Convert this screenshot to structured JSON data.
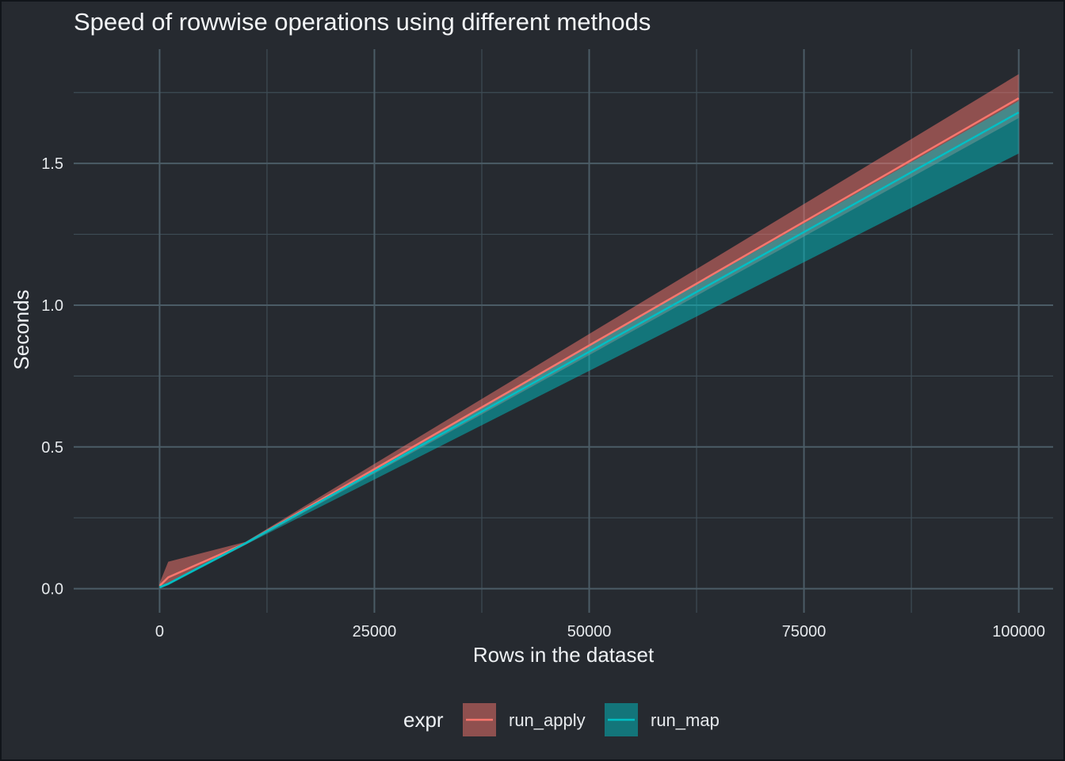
{
  "chart_data": {
    "type": "line",
    "title": "Speed of rowwise operations using different methods",
    "xlabel": "Rows in the dataset",
    "ylabel": "Seconds",
    "xlim": [
      -10000,
      104000
    ],
    "ylim": [
      -0.085,
      1.903
    ],
    "x_ticks": [
      0,
      25000,
      50000,
      75000,
      100000
    ],
    "x_tick_labels": [
      "0",
      "25000",
      "50000",
      "75000",
      "100000"
    ],
    "x_minor": [
      12500,
      37500,
      62500,
      87500
    ],
    "y_ticks": [
      0.0,
      0.5,
      1.0,
      1.5
    ],
    "y_tick_labels": [
      "0.0",
      "0.5",
      "1.0",
      "1.5"
    ],
    "y_minor": [
      0.25,
      0.75,
      1.25,
      1.75
    ],
    "grid": true,
    "legend": {
      "title": "expr",
      "position": "bottom"
    },
    "series": [
      {
        "name": "run_apply",
        "color": "#f8766d",
        "ribbon_color": "#f8766d",
        "x": [
          10,
          1000,
          10000,
          100000
        ],
        "y": [
          0.01,
          0.04,
          0.16,
          1.73
        ],
        "ymin": [
          0.0,
          0.015,
          0.155,
          1.66
        ],
        "ymax": [
          0.02,
          0.095,
          0.165,
          1.815
        ]
      },
      {
        "name": "run_map",
        "color": "#00bfc4",
        "ribbon_color": "#00bfc4",
        "x": [
          10,
          1000,
          10000,
          100000
        ],
        "y": [
          0.005,
          0.017,
          0.16,
          1.68
        ],
        "ymin": [
          0.0,
          0.012,
          0.155,
          1.535
        ],
        "ymax": [
          0.01,
          0.022,
          0.165,
          1.72
        ]
      }
    ]
  }
}
